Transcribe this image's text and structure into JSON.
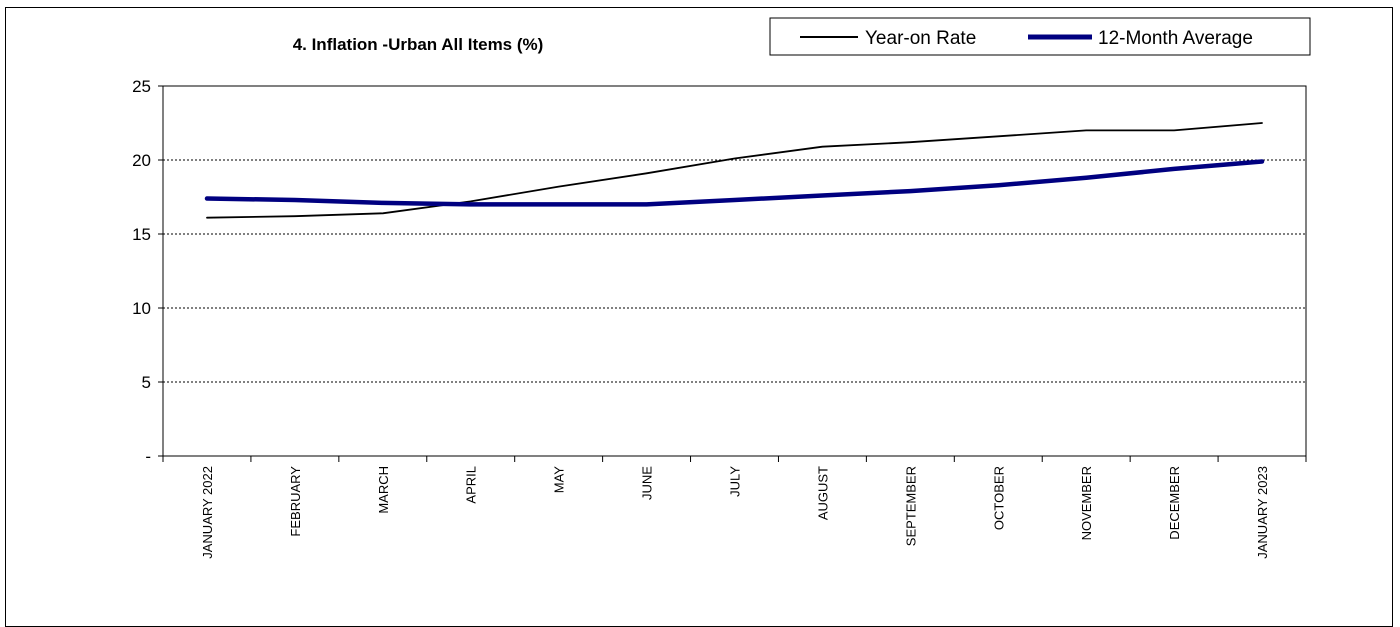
{
  "chart_data": {
    "type": "line",
    "title": "4. Inflation  -Urban All Items (%)",
    "categories": [
      "JANUARY 2022",
      "FEBRUARY",
      "MARCH",
      "APRIL",
      "MAY",
      "JUNE",
      "JULY",
      "AUGUST",
      "SEPTEMBER",
      "OCTOBER",
      "NOVEMBER",
      "DECEMBER",
      "JANUARY 2023"
    ],
    "y_tick_labels": [
      "-",
      "5",
      "10",
      "15",
      "20",
      "25"
    ],
    "ylim": [
      0,
      25
    ],
    "y_ticks": [
      0,
      5,
      10,
      15,
      20,
      25
    ],
    "grid": true,
    "legend_position": "top-right",
    "series": [
      {
        "name": "Year-on Rate",
        "color": "#000000",
        "values": [
          16.1,
          16.2,
          16.4,
          17.2,
          18.2,
          19.1,
          20.1,
          20.9,
          21.2,
          21.6,
          22.0,
          22.0,
          22.5
        ]
      },
      {
        "name": "12-Month Average",
        "color": "#000080",
        "values": [
          17.4,
          17.3,
          17.1,
          17.0,
          17.0,
          17.0,
          17.3,
          17.6,
          17.9,
          18.3,
          18.8,
          19.4,
          19.9
        ]
      }
    ]
  }
}
